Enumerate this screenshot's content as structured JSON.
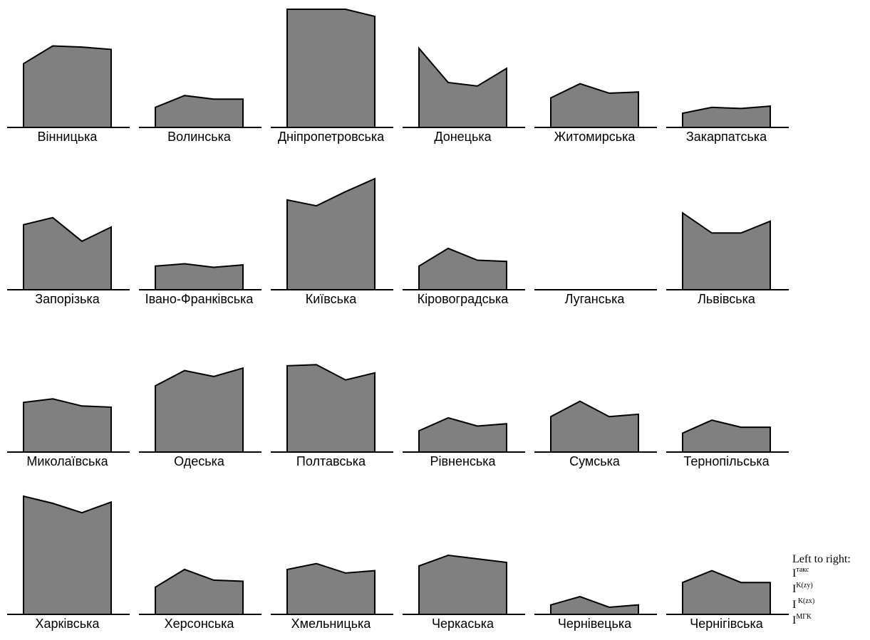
{
  "chart_data": {
    "type": "area",
    "series_order_note": "Left to right:",
    "indices": [
      {
        "base": "I",
        "sup": "такс"
      },
      {
        "base": "I",
        "sup": "K(zy)"
      },
      {
        "base": "I",
        "sup": " K(zx)"
      },
      {
        "base": "I",
        "sup": "МГК"
      }
    ],
    "ylim": [
      0,
      100
    ],
    "panels": [
      {
        "region": "Вінницька",
        "values": [
          54,
          69,
          68,
          66
        ]
      },
      {
        "region": "Волинська",
        "values": [
          17,
          27,
          24,
          24
        ]
      },
      {
        "region": "Дніпропетровська",
        "values": [
          100,
          100,
          100,
          94
        ]
      },
      {
        "region": "Донецька",
        "values": [
          67,
          38,
          35,
          50
        ]
      },
      {
        "region": "Житомирська",
        "values": [
          25,
          37,
          29,
          30
        ]
      },
      {
        "region": "Закарпатська",
        "values": [
          12,
          17,
          16,
          18
        ]
      },
      {
        "region": "Запорізька",
        "values": [
          55,
          61,
          41,
          53
        ]
      },
      {
        "region": "Івано-Франківська",
        "values": [
          20,
          22,
          19,
          21
        ]
      },
      {
        "region": "Київська",
        "values": [
          76,
          71,
          83,
          94
        ]
      },
      {
        "region": "Кіровоградська",
        "values": [
          20,
          35,
          25,
          24
        ]
      },
      {
        "region": "Луганська",
        "values": [
          0,
          0,
          0,
          0
        ]
      },
      {
        "region": "Львівська",
        "values": [
          65,
          48,
          48,
          58
        ]
      },
      {
        "region": "Миколаївська",
        "values": [
          42,
          45,
          39,
          38
        ]
      },
      {
        "region": "Одеська",
        "values": [
          56,
          69,
          64,
          71
        ]
      },
      {
        "region": "Полтавська",
        "values": [
          73,
          74,
          61,
          67
        ]
      },
      {
        "region": "Рівненська",
        "values": [
          18,
          29,
          22,
          24
        ]
      },
      {
        "region": "Сумська",
        "values": [
          30,
          43,
          30,
          32
        ]
      },
      {
        "region": "Тернопільська",
        "values": [
          16,
          27,
          21,
          21
        ]
      },
      {
        "region": "Харківська",
        "values": [
          100,
          94,
          86,
          95
        ]
      },
      {
        "region": "Херсонська",
        "values": [
          23,
          38,
          29,
          28
        ]
      },
      {
        "region": "Хмельницька",
        "values": [
          38,
          43,
          35,
          37
        ]
      },
      {
        "region": "Черкаська",
        "values": [
          41,
          50,
          47,
          44
        ]
      },
      {
        "region": "Чернівецька",
        "values": [
          8,
          15,
          6,
          8
        ]
      },
      {
        "region": "Чернігівська",
        "values": [
          27,
          37,
          27,
          27
        ]
      }
    ]
  },
  "colors": {
    "fill": "#808080",
    "stroke": "#000000",
    "background": "#ffffff"
  }
}
